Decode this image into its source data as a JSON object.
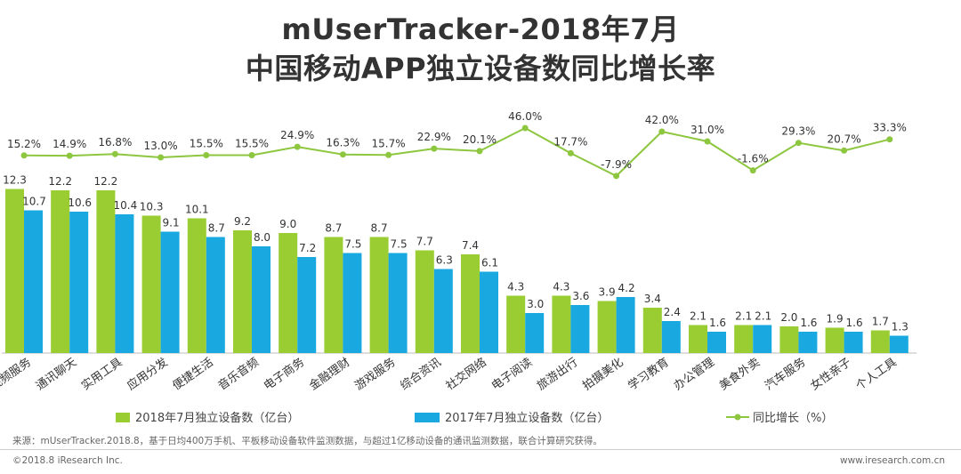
{
  "title_line1": "mUserTracker-2018年7月",
  "title_line2": "中国移动APP独立设备数同比增长率",
  "chart_data": {
    "type": "bar",
    "categories": [
      "视频服务",
      "通讯聊天",
      "实用工具",
      "应用分发",
      "便捷生活",
      "音乐音频",
      "电子商务",
      "金融理财",
      "游戏服务",
      "综合资讯",
      "社交网络",
      "电子阅读",
      "旅游出行",
      "拍摄美化",
      "学习教育",
      "办公管理",
      "美食外卖",
      "汽车服务",
      "女性亲子",
      "个人工具"
    ],
    "series": [
      {
        "name": "2018年7月独立设备数（亿台）",
        "color": "#9ACD32",
        "values": [
          12.3,
          12.2,
          12.2,
          10.3,
          10.1,
          9.2,
          9.0,
          8.7,
          8.7,
          7.7,
          7.4,
          4.3,
          4.3,
          3.9,
          3.4,
          2.1,
          2.1,
          2.0,
          1.9,
          1.7
        ],
        "labels": [
          "12.3",
          "12.2",
          "12.2",
          "10.3",
          "10.1",
          "9.2",
          "9.0",
          "8.7",
          "8.7",
          "7.7",
          "7.4",
          "4.3",
          "4.3",
          "3.9",
          "3.4",
          "2.1",
          "2.1",
          "2.0",
          "1.9",
          "1.7"
        ]
      },
      {
        "name": "2017年7月独立设备数（亿台）",
        "color": "#19A9E0",
        "values": [
          10.7,
          10.6,
          10.4,
          9.1,
          8.7,
          8.0,
          7.2,
          7.5,
          7.5,
          6.3,
          6.1,
          3.0,
          3.6,
          4.2,
          2.4,
          1.6,
          2.1,
          1.6,
          1.6,
          1.3
        ],
        "labels": [
          "10.7",
          "10.6",
          "10.4",
          "9.1",
          "8.7",
          "8.0",
          "7.2",
          "7.5",
          "7.5",
          "6.3",
          "6.1",
          "3.0",
          "3.6",
          "4.2",
          "2.4",
          "1.6",
          "2.1",
          "1.6",
          "1.6",
          "1.3"
        ]
      },
      {
        "name": "同比增长（%）",
        "color": "#8DC63F",
        "type": "line",
        "values": [
          15.2,
          14.9,
          16.8,
          13.0,
          15.5,
          15.5,
          24.9,
          16.3,
          15.7,
          22.9,
          20.1,
          46.0,
          17.7,
          -7.9,
          42.0,
          31.0,
          -1.6,
          29.3,
          20.7,
          33.3
        ],
        "labels": [
          "15.2%",
          "14.9%",
          "16.8%",
          "13.0%",
          "15.5%",
          "15.5%",
          "24.9%",
          "16.3%",
          "15.7%",
          "22.9%",
          "20.1%",
          "46.0%",
          "17.7%",
          "-7.9%",
          "42.0%",
          "31.0%",
          "-1.6%",
          "29.3%",
          "20.7%",
          "33.3%"
        ]
      }
    ],
    "ylim": [
      0,
      14
    ],
    "ylim_growth": [
      -40,
      80
    ]
  },
  "footer": {
    "source": "来源：mUserTracker.2018.8，基于日均400万手机、平板移动设备软件监测数据，与超过1亿移动设备的通讯监测数据，联合计算研究获得。",
    "copyright": "©2018.8 iResearch Inc.",
    "website": "www.iresearch.com.cn"
  }
}
